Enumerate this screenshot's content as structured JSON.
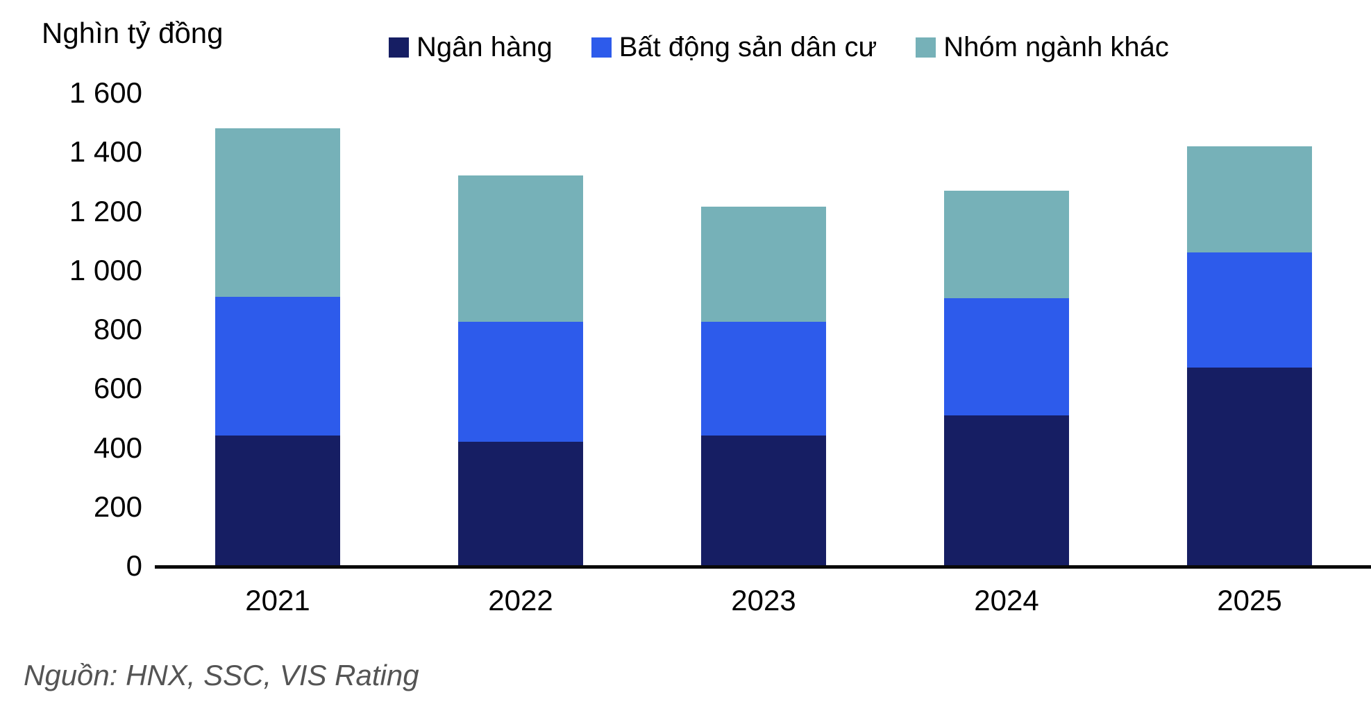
{
  "title": "Nghìn tỷ đồng",
  "source": "Nguồn: HNX, SSC, VIS Rating",
  "colors": {
    "bank": "#161E63",
    "residential_real_estate": "#2D5BEB",
    "other_sectors": "#76B1B8",
    "axis": "#0a0a0a",
    "source_text": "#545454"
  },
  "chart_data": {
    "type": "bar",
    "stacked": true,
    "title": "Nghìn tỷ đồng",
    "xlabel": "",
    "ylabel": "Nghìn tỷ đồng",
    "categories": [
      "2021",
      "2022",
      "2023",
      "2024",
      "2025"
    ],
    "series": [
      {
        "name": "Ngân hàng",
        "color": "#161E63",
        "values": [
          440,
          420,
          440,
          510,
          670
        ]
      },
      {
        "name": "Bất động sản dân cư",
        "color": "#2D5BEB",
        "values": [
          470,
          405,
          385,
          395,
          390
        ]
      },
      {
        "name": "Nhóm ngành khác",
        "color": "#76B1B8",
        "values": [
          570,
          495,
          390,
          365,
          360
        ]
      }
    ],
    "totals": [
      1480,
      1320,
      1215,
      1270,
      1420
    ],
    "ylim": [
      0,
      1600
    ],
    "ytick_step": 200,
    "yticks": [
      0,
      200,
      400,
      600,
      800,
      1000,
      1200,
      1400,
      1600
    ],
    "ytick_labels": [
      "0",
      "200",
      "400",
      "600",
      "800",
      "1 000",
      "1 200",
      "1 400",
      "1 600"
    ],
    "grid": false,
    "legend_position": "top"
  }
}
